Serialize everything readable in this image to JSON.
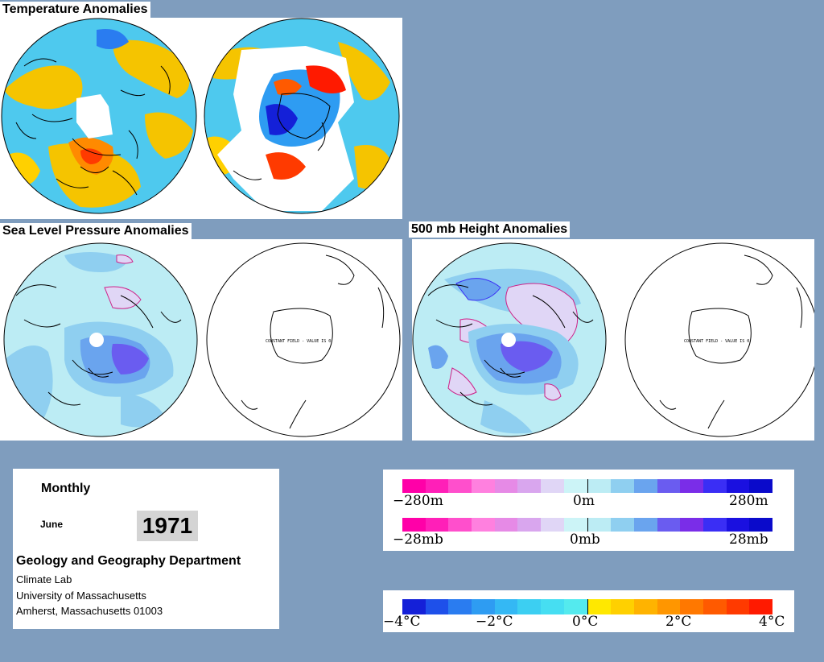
{
  "titles": {
    "temperature": "Temperature Anomalies",
    "slp": "Sea Level Pressure Anomalies",
    "height500": "500 mb Height Anomalies"
  },
  "constant_field_text": "CONSTANT FIELD - VALUE IS 0",
  "info": {
    "period": "Monthly",
    "month": "June",
    "year": "1971",
    "department": "Geology and Geography Department",
    "lab": "Climate Lab",
    "university": "University of Massachusetts",
    "address": "Amherst, Massachusetts 01003"
  },
  "height_scale": {
    "labels": [
      "−280m",
      "0m",
      "280m"
    ],
    "colors": [
      "#ff00a8",
      "#ff1fb8",
      "#ff4fcc",
      "#ff80df",
      "#e68ae6",
      "#d9a6ee",
      "#e0d6f6",
      "#ccf4f7",
      "#bcecf4",
      "#8fcff0",
      "#6aa4ee",
      "#6a5cf0",
      "#7a2de8",
      "#3a2ef5",
      "#1a10e0",
      "#0a0acb"
    ]
  },
  "pressure_scale": {
    "labels": [
      "−28mb",
      "0mb",
      "28mb"
    ],
    "colors": [
      "#ff00a8",
      "#ff1fb8",
      "#ff4fcc",
      "#ff80df",
      "#e68ae6",
      "#d9a6ee",
      "#e0d6f6",
      "#ccf4f7",
      "#bcecf4",
      "#8fcff0",
      "#6aa4ee",
      "#6a5cf0",
      "#7a2de8",
      "#3a2ef5",
      "#1a10e0",
      "#0a0acb"
    ]
  },
  "temperature_scale": {
    "labels": [
      "−4°C",
      "−2°C",
      "0°C",
      "2°C",
      "4°C"
    ],
    "colors": [
      "#1420d8",
      "#1e50ea",
      "#2a7cf0",
      "#2e9cf2",
      "#34b8f4",
      "#3ccff2",
      "#46def2",
      "#54eaee",
      "#ffe800",
      "#ffd000",
      "#ffb300",
      "#ff9600",
      "#ff7800",
      "#ff5a00",
      "#ff3a00",
      "#ff1a00"
    ]
  }
}
